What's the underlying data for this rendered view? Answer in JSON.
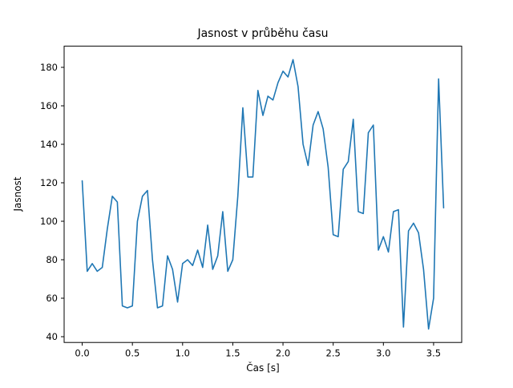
{
  "chart_data": {
    "type": "line",
    "title": "Jasnost v průběhu času",
    "xlabel": "Čas [s]",
    "ylabel": "Jasnost",
    "line_color": "#1f77b4",
    "xlim": [
      -0.18,
      3.78
    ],
    "ylim": [
      37,
      191
    ],
    "xticks": [
      0.0,
      0.5,
      1.0,
      1.5,
      2.0,
      2.5,
      3.0,
      3.5
    ],
    "xtick_labels": [
      "0.0",
      "0.5",
      "1.0",
      "1.5",
      "2.0",
      "2.5",
      "3.0",
      "3.5"
    ],
    "yticks": [
      40,
      60,
      80,
      100,
      120,
      140,
      160,
      180
    ],
    "ytick_labels": [
      "40",
      "60",
      "80",
      "100",
      "120",
      "140",
      "160",
      "180"
    ],
    "grid": false,
    "legend": "none",
    "x": [
      0.0,
      0.05,
      0.1,
      0.15,
      0.2,
      0.25,
      0.3,
      0.35,
      0.4,
      0.45,
      0.5,
      0.55,
      0.6,
      0.65,
      0.7,
      0.75,
      0.8,
      0.85,
      0.9,
      0.95,
      1.0,
      1.05,
      1.1,
      1.15,
      1.2,
      1.25,
      1.3,
      1.35,
      1.4,
      1.45,
      1.5,
      1.55,
      1.6,
      1.65,
      1.7,
      1.75,
      1.8,
      1.85,
      1.9,
      1.95,
      2.0,
      2.05,
      2.1,
      2.15,
      2.2,
      2.25,
      2.3,
      2.35,
      2.4,
      2.45,
      2.5,
      2.55,
      2.6,
      2.65,
      2.7,
      2.75,
      2.8,
      2.85,
      2.9,
      2.95,
      3.0,
      3.05,
      3.1,
      3.15,
      3.2,
      3.25,
      3.3,
      3.35,
      3.4,
      3.45,
      3.5,
      3.55,
      3.6
    ],
    "values": [
      121,
      74,
      78,
      74,
      76,
      96,
      113,
      110,
      56,
      55,
      56,
      100,
      113,
      116,
      80,
      55,
      56,
      82,
      75,
      58,
      78,
      80,
      77,
      85,
      76,
      98,
      75,
      82,
      105,
      74,
      80,
      113,
      159,
      123,
      123,
      168,
      155,
      165,
      163,
      172,
      178,
      175,
      184,
      170,
      140,
      129,
      150,
      157,
      148,
      128,
      93,
      92,
      127,
      131,
      153,
      105,
      104,
      146,
      150,
      85,
      92,
      84,
      105,
      106,
      45,
      95,
      99,
      94,
      75,
      44,
      60,
      174,
      107
    ]
  }
}
